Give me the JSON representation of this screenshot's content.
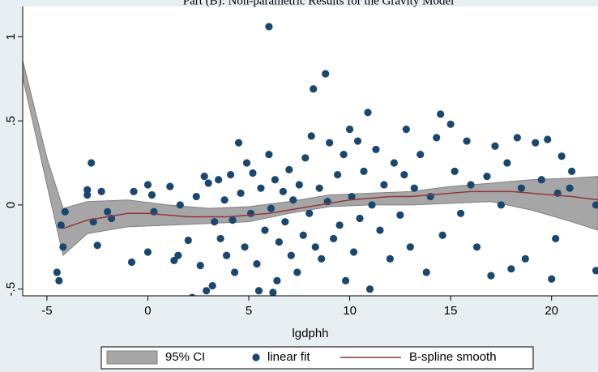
{
  "chart_data": {
    "type": "scatter",
    "title": "Part (B): Non-parametric Results for the Gravity Model",
    "x_label": "lgdphh",
    "xlim": [
      -6.2,
      22.3
    ],
    "ylim": [
      -0.54,
      1.18
    ],
    "xticks": [
      -5,
      0,
      5,
      10,
      15,
      20
    ],
    "yticks": [
      {
        "value": -0.5,
        "label": "-.5"
      },
      0,
      {
        "value": 0.5,
        "label": ".5"
      },
      1
    ],
    "series": [
      {
        "name": "95% CI",
        "type": "area",
        "color": "#a6a6a6",
        "x": [
          -6.2,
          -5,
          -4.2,
          -3,
          -1,
          1,
          3,
          5,
          7,
          9,
          11,
          13,
          15,
          17,
          19,
          21,
          22.3
        ],
        "upper": [
          0.86,
          0.28,
          -0.02,
          0.02,
          0.03,
          0.0,
          -0.02,
          -0.01,
          0.02,
          0.06,
          0.07,
          0.08,
          0.11,
          0.13,
          0.15,
          0.16,
          0.17
        ],
        "lower": [
          0.76,
          0.12,
          -0.3,
          -0.17,
          -0.13,
          -0.12,
          -0.11,
          -0.1,
          -0.05,
          -0.01,
          0.0,
          0.0,
          0.01,
          0.02,
          -0.03,
          -0.1,
          -0.15
        ]
      },
      {
        "name": "linear fit",
        "type": "scatter",
        "color": "#1a476f",
        "x": [
          -4.3,
          -4.5,
          -4.4,
          -4.2,
          -4.1,
          -3.0,
          -3.0,
          -2.8,
          -2.7,
          -2.5,
          -2.3,
          -2.0,
          -1.8,
          -0.8,
          -0.7,
          0.0,
          0.0,
          0.2,
          0.3,
          1.1,
          1.3,
          1.5,
          1.6,
          2.0,
          2.2,
          2.4,
          2.6,
          2.8,
          2.9,
          3.0,
          3.2,
          3.3,
          3.5,
          3.6,
          3.8,
          3.9,
          4.1,
          4.2,
          4.3,
          4.5,
          4.6,
          4.8,
          4.9,
          5.1,
          5.2,
          5.4,
          5.5,
          5.6,
          5.8,
          6.0,
          6.0,
          6.1,
          6.2,
          6.3,
          6.4,
          6.5,
          6.7,
          6.8,
          7.0,
          7.1,
          7.2,
          7.4,
          7.5,
          7.7,
          7.8,
          8.0,
          8.1,
          8.2,
          8.3,
          8.5,
          8.6,
          8.8,
          8.9,
          9.0,
          9.2,
          9.4,
          9.5,
          9.7,
          9.8,
          10.0,
          10.1,
          10.2,
          10.4,
          10.5,
          10.7,
          10.9,
          11.0,
          11.1,
          11.3,
          11.5,
          11.7,
          12.0,
          12.2,
          12.5,
          12.7,
          13.0,
          13.2,
          13.5,
          13.8,
          14.0,
          14.3,
          14.5,
          14.6,
          15.0,
          15.2,
          15.5,
          15.8,
          16.0,
          16.3,
          16.8,
          17.0,
          17.5,
          17.8,
          18.0,
          18.3,
          18.5,
          18.7,
          19.2,
          19.5,
          19.8,
          20.0,
          20.2,
          20.3,
          20.5,
          20.9,
          22.2,
          22.2,
          21.0,
          17.2,
          12.8
        ],
        "y": [
          -0.12,
          -0.4,
          -0.45,
          -0.25,
          -0.04,
          0.09,
          0.06,
          0.25,
          -0.1,
          -0.24,
          0.08,
          -0.04,
          -0.08,
          -0.34,
          0.08,
          0.12,
          -0.28,
          0.06,
          -0.04,
          0.11,
          -0.33,
          -0.3,
          0.0,
          -0.21,
          -0.55,
          0.05,
          -0.36,
          0.17,
          -0.51,
          0.13,
          -0.48,
          -0.1,
          0.15,
          -0.2,
          0.03,
          -0.3,
          0.18,
          -0.09,
          -0.4,
          0.37,
          0.07,
          -0.25,
          0.25,
          -0.05,
          0.19,
          -0.35,
          -0.51,
          0.1,
          -0.15,
          1.06,
          0.3,
          -0.02,
          -0.52,
          0.15,
          -0.45,
          -0.22,
          0.08,
          -0.1,
          0.21,
          -0.3,
          0.03,
          -0.4,
          0.12,
          -0.18,
          0.28,
          -0.05,
          0.41,
          0.69,
          -0.25,
          0.1,
          -0.32,
          0.78,
          0.02,
          0.37,
          -0.2,
          0.18,
          -0.12,
          0.3,
          -0.45,
          0.45,
          0.05,
          -0.28,
          0.38,
          -0.08,
          0.2,
          0.55,
          -0.5,
          0.0,
          0.33,
          -0.15,
          0.12,
          -0.32,
          0.25,
          -0.06,
          0.18,
          -0.25,
          0.1,
          0.3,
          -0.4,
          0.05,
          0.4,
          0.54,
          -0.18,
          0.48,
          0.2,
          -0.05,
          0.38,
          0.12,
          -0.25,
          0.17,
          -0.42,
          0.0,
          0.25,
          -0.38,
          0.4,
          0.1,
          -0.32,
          0.37,
          0.15,
          0.39,
          -0.44,
          -0.2,
          0.07,
          0.29,
          0.1,
          0.0,
          -0.39,
          0.2,
          0.35,
          0.45
        ]
      },
      {
        "name": "B-spline smooth",
        "type": "line",
        "color": "#90353b",
        "x": [
          -4.2,
          -3,
          -2,
          -1,
          0,
          1,
          2,
          3,
          4,
          5,
          6,
          7,
          8,
          9,
          10,
          11,
          12,
          13,
          14,
          15,
          16,
          17,
          18,
          19,
          20,
          21,
          22.3
        ],
        "values": [
          -0.14,
          -0.09,
          -0.07,
          -0.05,
          -0.05,
          -0.06,
          -0.07,
          -0.07,
          -0.07,
          -0.06,
          -0.05,
          -0.03,
          -0.01,
          0.01,
          0.03,
          0.04,
          0.05,
          0.05,
          0.06,
          0.07,
          0.08,
          0.08,
          0.08,
          0.07,
          0.06,
          0.05,
          0.03
        ]
      }
    ]
  }
}
